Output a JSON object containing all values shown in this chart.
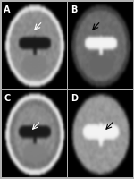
{
  "figsize": [
    1.5,
    2.0
  ],
  "dpi": 100,
  "background_color": "#b0b0b0",
  "panel_labels": [
    "A",
    "B",
    "C",
    "D"
  ],
  "label_color": "white",
  "label_fontsize": 7,
  "border_color": "white",
  "border_lw": 0.5,
  "panel_bg_A": "#888888",
  "panel_bg_B": "#aaaaaa",
  "panel_bg_C": "#777777",
  "panel_bg_D": "#999999"
}
